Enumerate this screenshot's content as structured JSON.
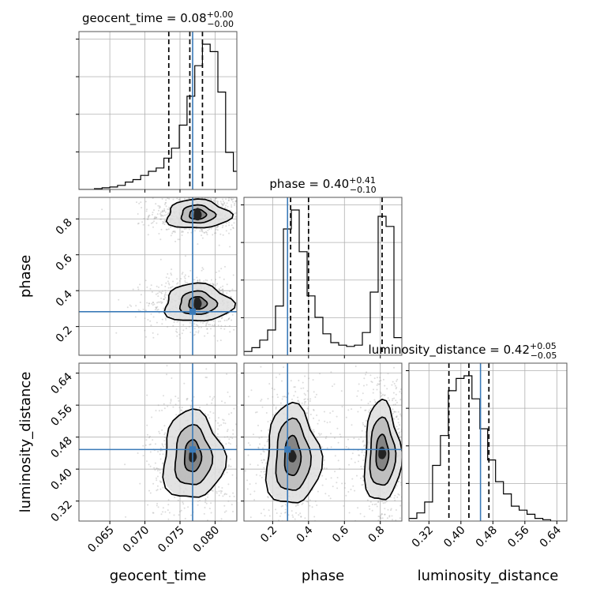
{
  "chart_data": {
    "type": "corner",
    "parameters": [
      "geocent_time",
      "phase",
      "luminosity_distance"
    ],
    "axis_labels": {
      "geocent_time": "geocent_time",
      "phase": "phase",
      "luminosity_distance": "luminosity_distance"
    },
    "ranges": {
      "geocent_time": [
        0.0606,
        0.0831
      ],
      "phase": [
        0.04,
        0.92
      ],
      "luminosity_distance": [
        0.27,
        0.665
      ]
    },
    "ticks": {
      "geocent_time": [
        "0.065",
        "0.070",
        "0.075",
        "0.080"
      ],
      "phase": [
        "0.2",
        "0.4",
        "0.6",
        "0.8"
      ],
      "luminosity_distance": [
        "0.32",
        "0.40",
        "0.48",
        "0.56",
        "0.64"
      ]
    },
    "titles": {
      "geocent_time": {
        "name": "geocent_time",
        "value": "0.08",
        "plus": "+0.00",
        "minus": "−0.00"
      },
      "phase": {
        "name": "phase",
        "value": "0.40",
        "plus": "+0.41",
        "minus": "−0.10"
      },
      "luminosity_distance": {
        "name": "luminosity_distance",
        "value": "0.42",
        "plus": "+0.05",
        "minus": "−0.05"
      }
    },
    "truths": {
      "geocent_time": 0.0768,
      "phase": 0.283,
      "luminosity_distance": 0.449
    },
    "quantiles": {
      "geocent_time": [
        0.0734,
        0.0764,
        0.0782
      ],
      "phase": [
        0.3,
        0.4,
        0.81
      ],
      "luminosity_distance": [
        0.37,
        0.42,
        0.47
      ]
    },
    "histograms": {
      "geocent_time": {
        "x_start": 0.0606,
        "bin_width": 0.0011,
        "counts": [
          0,
          0,
          1,
          2,
          3,
          5,
          9,
          12,
          17,
          22,
          26,
          38,
          50,
          78,
          113,
          150,
          176,
          167,
          118,
          45,
          22,
          10
        ]
      },
      "phase": {
        "x_start": 0.04,
        "bin_width": 0.044,
        "counts": [
          3,
          6,
          12,
          20,
          39,
          100,
          115,
          82,
          47,
          30,
          17,
          10,
          8,
          7,
          8,
          18,
          50,
          110,
          102,
          14
        ]
      },
      "luminosity_distance": {
        "x_start": 0.27,
        "bin_width": 0.0197,
        "counts": [
          2,
          6,
          14,
          41,
          63,
          96,
          105,
          107,
          90,
          68,
          45,
          29,
          20,
          11,
          8,
          5,
          2,
          1,
          0,
          0
        ]
      }
    },
    "contours_2d": [
      {
        "x": "geocent_time",
        "y": "phase",
        "modes": [
          {
            "center": [
              0.0775,
              0.825
            ],
            "levels": [
              [
                0.0012,
                0.028
              ],
              [
                0.0024,
                0.05
              ],
              [
                0.0045,
                0.08
              ]
            ]
          },
          {
            "center": [
              0.0775,
              0.33
            ],
            "levels": [
              [
                0.0013,
                0.035
              ],
              [
                0.0026,
                0.065
              ],
              [
                0.0048,
                0.105
              ]
            ]
          }
        ]
      },
      {
        "x": "geocent_time",
        "y": "luminosity_distance",
        "modes": [
          {
            "center": [
              0.0768,
              0.432
            ],
            "levels": [
              [
                0.0012,
                0.04
              ],
              [
                0.0026,
                0.075
              ],
              [
                0.0043,
                0.11
              ]
            ]
          }
        ]
      },
      {
        "x": "phase",
        "y": "luminosity_distance",
        "modes": [
          {
            "center": [
              0.31,
              0.432
            ],
            "levels": [
              [
                0.045,
                0.05
              ],
              [
                0.095,
                0.09
              ],
              [
                0.15,
                0.125
              ]
            ]
          },
          {
            "center": [
              0.81,
              0.44
            ],
            "levels": [
              [
                0.035,
                0.045
              ],
              [
                0.07,
                0.085
              ],
              [
                0.1,
                0.125
              ]
            ]
          }
        ]
      }
    ],
    "grid": true,
    "title": "",
    "colors": {
      "truth": "#3a7ab8",
      "contour": "#000000",
      "hist": "#000000",
      "scatter": "#9a9a9a"
    }
  }
}
